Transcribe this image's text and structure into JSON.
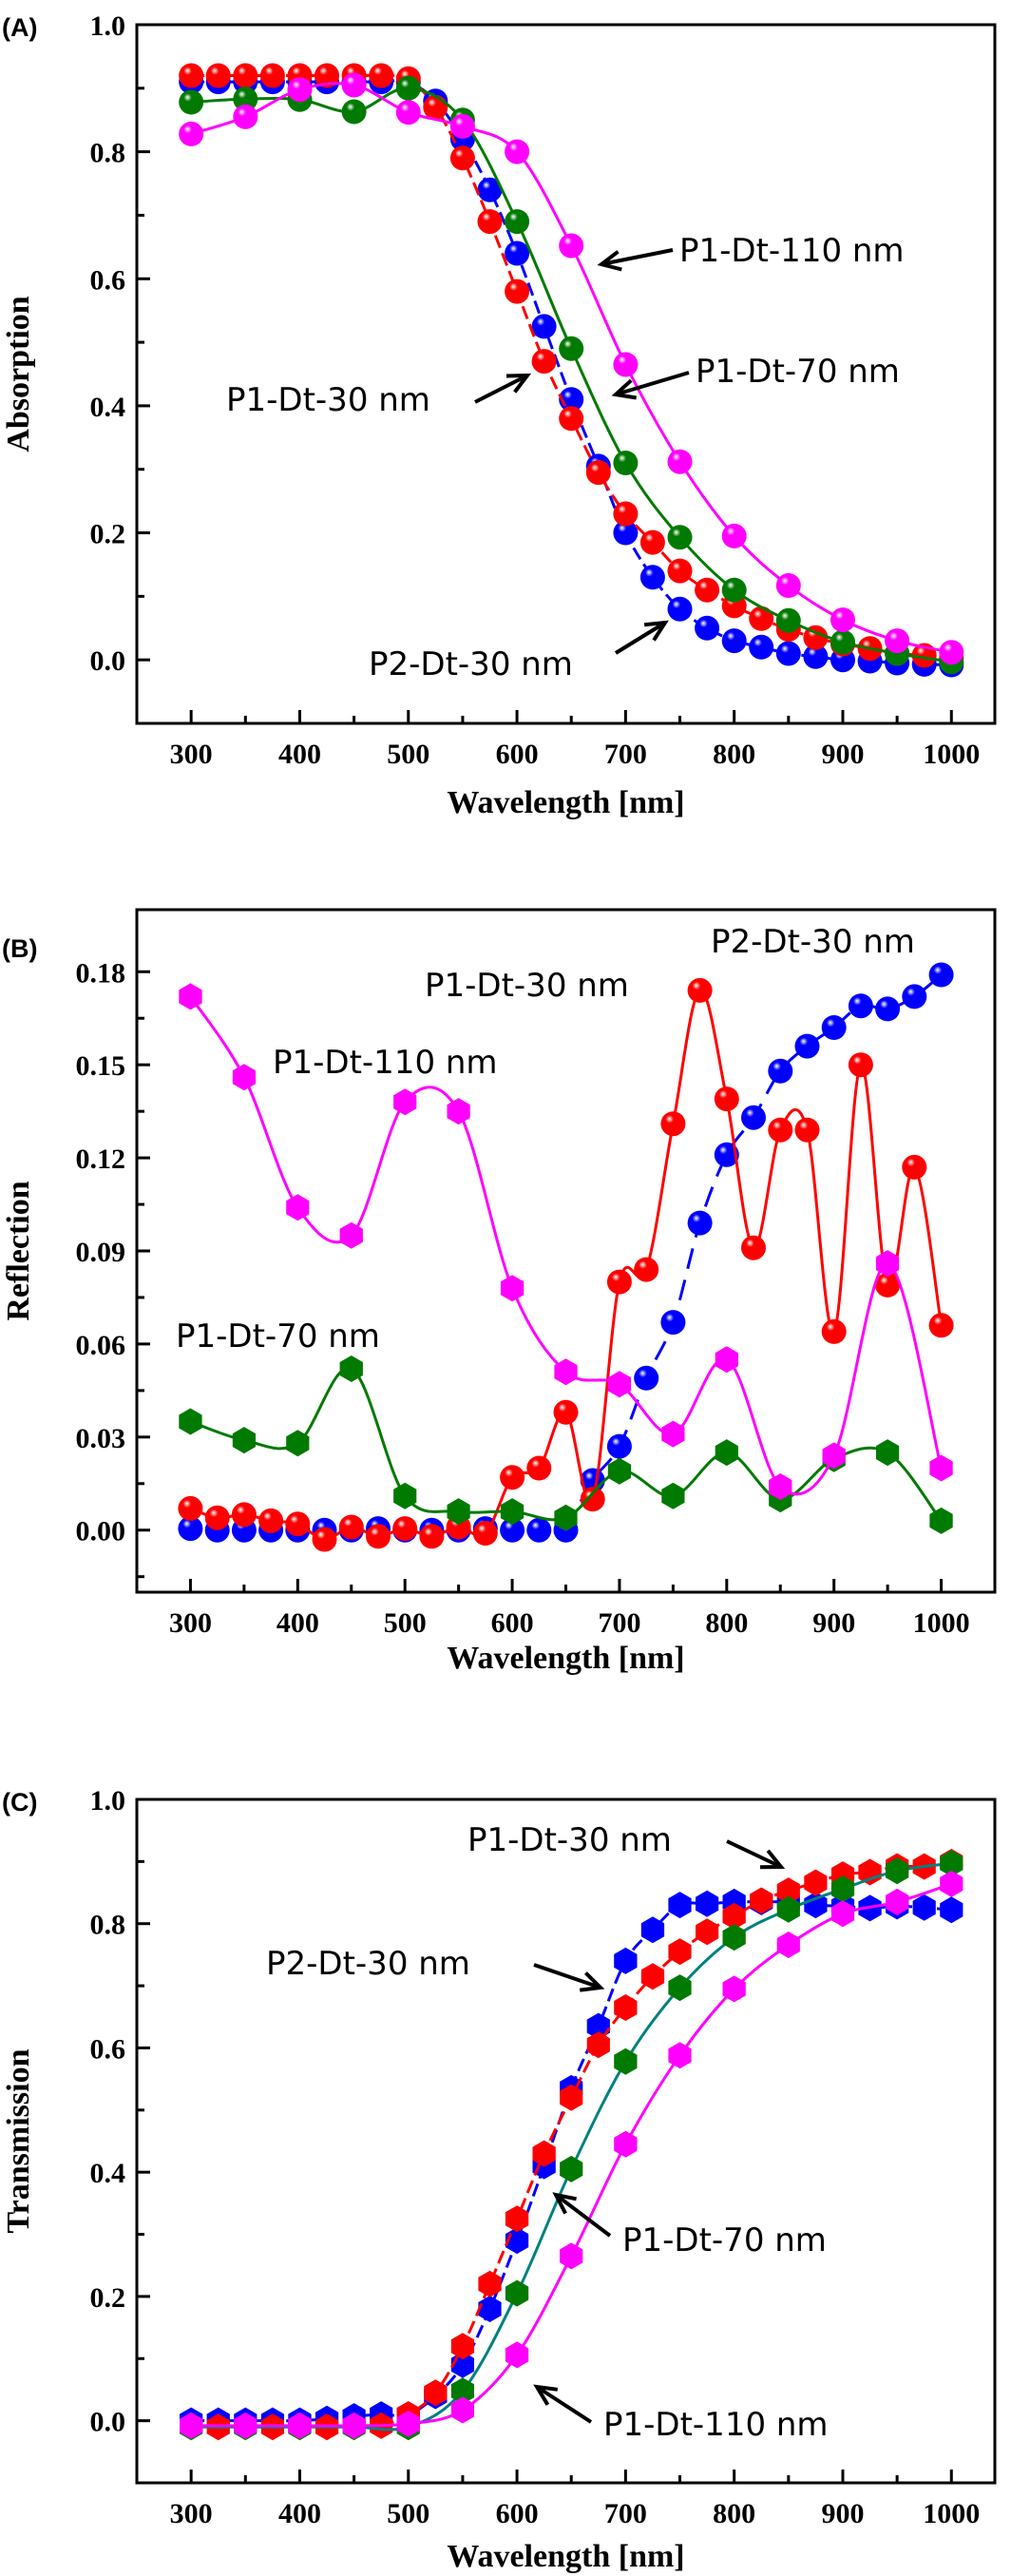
{
  "figure": {
    "panels": [
      "(A)",
      "(B)",
      "(C)"
    ]
  },
  "colors": {
    "P1-Dt-30 nm": "#ff0000",
    "P2-Dt-30 nm": "#0000ff",
    "P1-Dt-70 nm": "#007a00",
    "P1-Dt-110 nm": "#ff00ff",
    "line_P1-Dt-70_C": "#008080"
  },
  "chart_data": [
    {
      "panel": "(A)",
      "type": "line",
      "title": "",
      "xlabel": "Wavelength [nm]",
      "ylabel": "Absorption",
      "xlim": [
        250,
        1040
      ],
      "ylim": [
        -0.1,
        1.0
      ],
      "xticks": [
        300,
        400,
        500,
        600,
        700,
        800,
        900,
        1000
      ],
      "yticks": [
        0.0,
        0.2,
        0.4,
        0.6,
        0.8,
        1.0
      ],
      "ytick_labels": [
        "0.0",
        "0.2",
        "0.4",
        "0.6",
        "0.8",
        "1.0"
      ],
      "grid": false,
      "marker": "sphere",
      "series": [
        {
          "name": "P2-Dt-30 nm",
          "color": "#0000ff",
          "dash": true,
          "x": [
            300,
            325,
            350,
            375,
            400,
            425,
            450,
            475,
            500,
            525,
            550,
            575,
            600,
            625,
            650,
            675,
            700,
            725,
            750,
            775,
            800,
            825,
            850,
            875,
            900,
            925,
            950,
            975,
            1000
          ],
          "y": [
            0.91,
            0.91,
            0.91,
            0.91,
            0.91,
            0.91,
            0.91,
            0.91,
            0.91,
            0.88,
            0.82,
            0.74,
            0.64,
            0.525,
            0.41,
            0.305,
            0.2,
            0.13,
            0.08,
            0.05,
            0.03,
            0.02,
            0.01,
            0.005,
            0.0,
            -0.002,
            -0.005,
            -0.007,
            -0.008
          ]
        },
        {
          "name": "P1-Dt-30 nm",
          "color": "#ff0000",
          "dash": true,
          "x": [
            300,
            325,
            350,
            375,
            400,
            425,
            450,
            475,
            500,
            525,
            550,
            575,
            600,
            625,
            650,
            675,
            700,
            725,
            750,
            775,
            800,
            825,
            850,
            875,
            900,
            925,
            950,
            975,
            1000
          ],
          "y": [
            0.92,
            0.92,
            0.92,
            0.92,
            0.92,
            0.92,
            0.92,
            0.92,
            0.915,
            0.87,
            0.79,
            0.69,
            0.58,
            0.47,
            0.38,
            0.295,
            0.23,
            0.185,
            0.14,
            0.11,
            0.085,
            0.065,
            0.048,
            0.035,
            0.025,
            0.018,
            0.01,
            0.007,
            0.003
          ]
        },
        {
          "name": "P1-Dt-70 nm",
          "color": "#007a00",
          "dash": false,
          "x": [
            300,
            350,
            400,
            450,
            500,
            550,
            600,
            650,
            700,
            750,
            800,
            850,
            900,
            950,
            1000
          ],
          "y": [
            0.878,
            0.883,
            0.882,
            0.863,
            0.9,
            0.85,
            0.69,
            0.49,
            0.31,
            0.193,
            0.11,
            0.062,
            0.028,
            0.01,
            -0.003
          ]
        },
        {
          "name": "P1-Dt-110 nm",
          "color": "#ff00ff",
          "dash": false,
          "x": [
            300,
            350,
            400,
            450,
            500,
            550,
            600,
            650,
            700,
            750,
            800,
            850,
            900,
            950,
            1000
          ],
          "y": [
            0.828,
            0.855,
            0.898,
            0.905,
            0.862,
            0.84,
            0.8,
            0.652,
            0.465,
            0.312,
            0.195,
            0.117,
            0.063,
            0.03,
            0.012
          ]
        }
      ],
      "annotations": [
        {
          "text": "P1-Dt-110 nm",
          "points_to": [
            672,
            0.62
          ]
        },
        {
          "text": "P1-Dt-70 nm",
          "points_to": [
            688,
            0.42
          ]
        },
        {
          "text": "P1-Dt-30 nm",
          "points_to": [
            610,
            0.47
          ]
        },
        {
          "text": "P2-Dt-30 nm",
          "points_to": [
            740,
            0.08
          ]
        }
      ]
    },
    {
      "panel": "(B)",
      "type": "line",
      "title": "",
      "xlabel": "Wavelength [nm]",
      "ylabel": "Reflection",
      "xlim": [
        250,
        1050
      ],
      "ylim": [
        -0.02,
        0.2
      ],
      "xticks": [
        300,
        400,
        500,
        600,
        700,
        800,
        900,
        1000
      ],
      "yticks": [
        0.0,
        0.03,
        0.06,
        0.09,
        0.12,
        0.15,
        0.18
      ],
      "ytick_labels": [
        "0.00",
        "0.03",
        "0.06",
        "0.09",
        "0.12",
        "0.15",
        "0.18"
      ],
      "grid": false,
      "series": [
        {
          "name": "P2-Dt-30 nm",
          "color": "#0000ff",
          "marker": "sphere",
          "line": "dashed-from-650",
          "x": [
            300,
            325,
            350,
            375,
            400,
            425,
            450,
            475,
            500,
            525,
            550,
            575,
            600,
            625,
            650,
            675,
            700,
            725,
            750,
            775,
            800,
            825,
            850,
            875,
            900,
            925,
            950,
            975,
            1000
          ],
          "y": [
            0.0005,
            0.0,
            0.0,
            0.0,
            0.0,
            0.0,
            0.0,
            0.0005,
            0.0,
            0.0,
            0.0,
            0.0005,
            0.0,
            0.0,
            0.0,
            0.016,
            0.027,
            0.049,
            0.067,
            0.099,
            0.121,
            0.133,
            0.148,
            0.156,
            0.162,
            0.169,
            0.168,
            0.172,
            0.179
          ]
        },
        {
          "name": "P1-Dt-30 nm",
          "color": "#ff0000",
          "marker": "sphere",
          "line": "solid",
          "x": [
            300,
            325,
            350,
            375,
            400,
            425,
            450,
            475,
            500,
            525,
            550,
            575,
            600,
            625,
            650,
            675,
            700,
            725,
            750,
            775,
            800,
            825,
            850,
            875,
            900,
            925,
            950,
            975,
            1000
          ],
          "y": [
            0.007,
            0.004,
            0.005,
            0.003,
            0.002,
            -0.003,
            0.001,
            -0.002,
            0.0005,
            -0.002,
            0.001,
            -0.001,
            0.017,
            0.02,
            0.038,
            0.01,
            0.08,
            0.084,
            0.131,
            0.174,
            0.139,
            0.091,
            0.129,
            0.129,
            0.064,
            0.15,
            0.079,
            0.117,
            0.066
          ]
        },
        {
          "name": "P1-Dt-70 nm",
          "color": "#007a00",
          "marker": "hexagon",
          "line": "smooth",
          "x": [
            300,
            350,
            400,
            450,
            500,
            550,
            600,
            650,
            700,
            750,
            800,
            850,
            900,
            950,
            1000
          ],
          "y": [
            0.035,
            0.029,
            0.028,
            0.052,
            0.011,
            0.006,
            0.006,
            0.004,
            0.019,
            0.011,
            0.025,
            0.01,
            0.023,
            0.025,
            0.003
          ]
        },
        {
          "name": "P1-Dt-110 nm",
          "color": "#ff00ff",
          "marker": "hexagon",
          "line": "smooth",
          "x": [
            300,
            350,
            400,
            450,
            500,
            550,
            600,
            650,
            700,
            750,
            800,
            850,
            900,
            950,
            1000
          ],
          "y": [
            0.172,
            0.146,
            0.104,
            0.095,
            0.138,
            0.135,
            0.078,
            0.051,
            0.047,
            0.031,
            0.055,
            0.014,
            0.024,
            0.086,
            0.02
          ]
        }
      ],
      "annotations": [
        {
          "text": "P2-Dt-30 nm",
          "position": "top-right"
        },
        {
          "text": "P1-Dt-30 nm",
          "position": "upper-middle"
        },
        {
          "text": "P1-Dt-110 nm",
          "position": "upper-left"
        },
        {
          "text": "P1-Dt-70 nm",
          "position": "middle-left"
        }
      ]
    },
    {
      "panel": "(C)",
      "type": "line",
      "title": "",
      "xlabel": "Wavelength [nm]",
      "ylabel": "Transmission",
      "xlim": [
        250,
        1040
      ],
      "ylim": [
        -0.1,
        1.0
      ],
      "xticks": [
        300,
        400,
        500,
        600,
        700,
        800,
        900,
        1000
      ],
      "yticks": [
        0.0,
        0.2,
        0.4,
        0.6,
        0.8,
        1.0
      ],
      "ytick_labels": [
        "0.0",
        "0.2",
        "0.4",
        "0.6",
        "0.8",
        "1.0"
      ],
      "grid": false,
      "marker": "hexagon",
      "series": [
        {
          "name": "P2-Dt-30 nm",
          "color": "#0000ff",
          "dash": true,
          "x": [
            300,
            325,
            350,
            375,
            400,
            425,
            450,
            475,
            500,
            525,
            550,
            575,
            600,
            625,
            650,
            675,
            700,
            725,
            750,
            775,
            800,
            825,
            850,
            875,
            900,
            925,
            950,
            975,
            1000
          ],
          "y": [
            0.0,
            0.0,
            0.0,
            0.0,
            0.0,
            0.003,
            0.007,
            0.01,
            0.01,
            0.04,
            0.09,
            0.18,
            0.29,
            0.41,
            0.535,
            0.635,
            0.74,
            0.79,
            0.83,
            0.832,
            0.835,
            0.835,
            0.835,
            0.83,
            0.828,
            0.825,
            0.828,
            0.826,
            0.822
          ]
        },
        {
          "name": "P1-Dt-30 nm",
          "color": "#ff0000",
          "dash": true,
          "x": [
            300,
            325,
            350,
            375,
            400,
            425,
            450,
            475,
            500,
            525,
            550,
            575,
            600,
            625,
            650,
            675,
            700,
            725,
            750,
            775,
            800,
            825,
            850,
            875,
            900,
            925,
            950,
            975,
            1000
          ],
          "y": [
            -0.008,
            -0.01,
            -0.008,
            -0.01,
            -0.008,
            -0.01,
            -0.008,
            -0.008,
            0.01,
            0.045,
            0.12,
            0.22,
            0.325,
            0.43,
            0.52,
            0.605,
            0.665,
            0.715,
            0.755,
            0.787,
            0.812,
            0.837,
            0.853,
            0.866,
            0.879,
            0.883,
            0.892,
            0.892,
            0.899
          ]
        },
        {
          "name": "P1-Dt-70 nm",
          "color": "#007a00",
          "line_color": "#008080",
          "dash": false,
          "x": [
            300,
            350,
            400,
            450,
            500,
            550,
            600,
            650,
            700,
            750,
            800,
            850,
            900,
            950,
            1000
          ],
          "y": [
            -0.01,
            -0.01,
            -0.01,
            -0.01,
            -0.01,
            0.048,
            0.205,
            0.405,
            0.578,
            0.697,
            0.778,
            0.823,
            0.856,
            0.885,
            0.897
          ]
        },
        {
          "name": "P1-Dt-110 nm",
          "color": "#ff00ff",
          "dash": false,
          "x": [
            300,
            350,
            400,
            450,
            500,
            550,
            600,
            650,
            700,
            750,
            800,
            850,
            900,
            950,
            1000
          ],
          "y": [
            -0.008,
            -0.008,
            -0.008,
            -0.008,
            -0.005,
            0.017,
            0.106,
            0.265,
            0.445,
            0.588,
            0.695,
            0.766,
            0.816,
            0.835,
            0.864
          ]
        }
      ],
      "annotations": [
        {
          "text": "P1-Dt-30 nm",
          "points_to": [
            855,
            0.87
          ]
        },
        {
          "text": "P2-Dt-30 nm",
          "points_to": [
            690,
            0.73
          ]
        },
        {
          "text": "P1-Dt-70 nm",
          "points_to": [
            640,
            0.33
          ]
        },
        {
          "text": "P1-Dt-110 nm",
          "points_to": [
            610,
            0.08
          ]
        }
      ]
    }
  ]
}
